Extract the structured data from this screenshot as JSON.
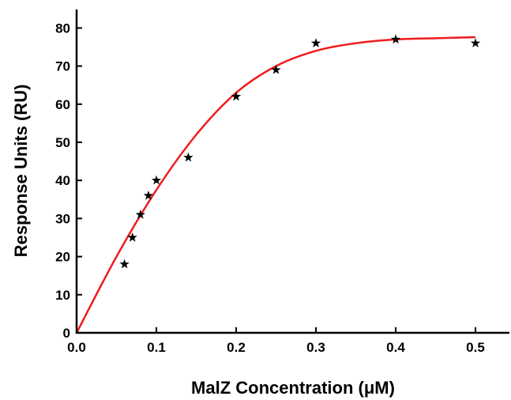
{
  "chart_data": {
    "type": "scatter",
    "title": "",
    "xlabel": "MalZ Concentration (μM)",
    "ylabel": "Response Units (RU)",
    "xlim": [
      0,
      0.55
    ],
    "ylim": [
      0,
      85
    ],
    "x_ticks": [
      0.0,
      0.1,
      0.2,
      0.3,
      0.4,
      0.5
    ],
    "x_tick_labels": [
      "0.0",
      "0.1",
      "0.2",
      "0.3",
      "0.4",
      "0.5"
    ],
    "y_ticks": [
      0,
      10,
      20,
      30,
      40,
      50,
      60,
      70,
      80
    ],
    "y_tick_labels": [
      "0",
      "10",
      "20",
      "30",
      "40",
      "50",
      "60",
      "70",
      "80"
    ],
    "grid": false,
    "series": [
      {
        "type": "scatter",
        "marker": "star",
        "color": "#000000",
        "x": [
          0.06,
          0.07,
          0.08,
          0.09,
          0.1,
          0.14,
          0.2,
          0.25,
          0.3,
          0.4,
          0.5
        ],
        "y": [
          18,
          25,
          31,
          36,
          40,
          46,
          62,
          69,
          76,
          77,
          76
        ]
      },
      {
        "type": "line",
        "color": "#ee1c1c",
        "x": [
          0.0,
          0.05,
          0.1,
          0.15,
          0.2,
          0.25,
          0.3,
          0.35,
          0.4,
          0.45,
          0.5
        ],
        "y": [
          0.0,
          20.0,
          37.5,
          52.0,
          63.0,
          70.0,
          74.0,
          76.0,
          77.0,
          77.3,
          77.6
        ]
      }
    ]
  }
}
